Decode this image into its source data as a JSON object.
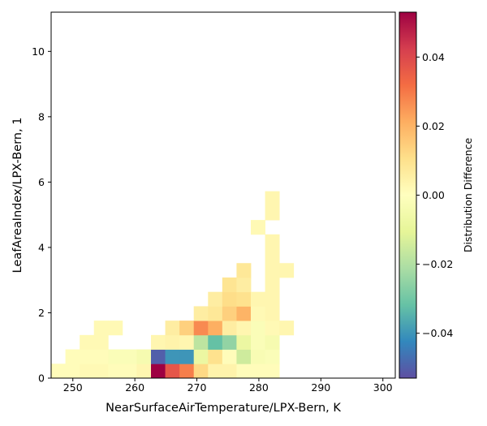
{
  "chart_data": {
    "type": "heatmap",
    "xlabel": "NearSurfaceAirTemperature/LPX-Bern,  K",
    "ylabel": "LeafAreaIndex/LPX-Bern,  1",
    "colorbar_label": "Distribution Difference",
    "xlim": [
      246.5,
      302
    ],
    "ylim": [
      0,
      11.2
    ],
    "x_ticks": [
      250,
      260,
      270,
      280,
      290,
      300
    ],
    "y_ticks": [
      0,
      2,
      4,
      6,
      8,
      10
    ],
    "colorbar_range": [
      -0.053,
      0.053
    ],
    "colorbar_ticks": [
      -0.04,
      -0.02,
      0.0,
      0.02,
      0.04
    ],
    "colorbar_tick_labels": [
      "−0.04",
      "−0.02",
      "0.00",
      "0.02",
      "0.04"
    ],
    "colormap": "Spectral_r",
    "bin_width_x": 2.3,
    "bin_height_y": 0.44,
    "cells": [
      {
        "x": 246.5,
        "y": 0.0,
        "v": 0.001
      },
      {
        "x": 248.8,
        "y": 0.0,
        "v": 0.001
      },
      {
        "x": 251.1,
        "y": 0.0,
        "v": 0.002
      },
      {
        "x": 253.4,
        "y": 0.0,
        "v": 0.002
      },
      {
        "x": 255.7,
        "y": 0.0,
        "v": 0.001
      },
      {
        "x": 258.0,
        "y": 0.0,
        "v": 0.001
      },
      {
        "x": 260.3,
        "y": 0.0,
        "v": 0.003
      },
      {
        "x": 262.6,
        "y": 0.0,
        "v": 0.053
      },
      {
        "x": 264.9,
        "y": 0.0,
        "v": 0.037
      },
      {
        "x": 267.2,
        "y": 0.0,
        "v": 0.029
      },
      {
        "x": 269.5,
        "y": 0.0,
        "v": 0.012
      },
      {
        "x": 271.8,
        "y": 0.0,
        "v": 0.004
      },
      {
        "x": 274.1,
        "y": 0.0,
        "v": 0.004
      },
      {
        "x": 276.4,
        "y": 0.0,
        "v": 0.001
      },
      {
        "x": 278.7,
        "y": 0.0,
        "v": 0.001
      },
      {
        "x": 281.0,
        "y": 0.0,
        "v": 0.001
      },
      {
        "x": 248.8,
        "y": 0.44,
        "v": 0.001
      },
      {
        "x": 251.1,
        "y": 0.44,
        "v": 0.001
      },
      {
        "x": 253.4,
        "y": 0.44,
        "v": 0.001
      },
      {
        "x": 255.7,
        "y": 0.44,
        "v": -0.002
      },
      {
        "x": 258.0,
        "y": 0.44,
        "v": -0.002
      },
      {
        "x": 260.3,
        "y": 0.44,
        "v": -0.004
      },
      {
        "x": 262.6,
        "y": 0.44,
        "v": -0.05
      },
      {
        "x": 264.9,
        "y": 0.44,
        "v": -0.04
      },
      {
        "x": 267.2,
        "y": 0.44,
        "v": -0.04
      },
      {
        "x": 269.5,
        "y": 0.44,
        "v": -0.008
      },
      {
        "x": 271.8,
        "y": 0.44,
        "v": 0.01
      },
      {
        "x": 274.1,
        "y": 0.44,
        "v": 0.001
      },
      {
        "x": 276.4,
        "y": 0.44,
        "v": -0.015
      },
      {
        "x": 278.7,
        "y": 0.44,
        "v": -0.003
      },
      {
        "x": 281.0,
        "y": 0.44,
        "v": -0.002
      },
      {
        "x": 251.1,
        "y": 0.88,
        "v": 0.002
      },
      {
        "x": 253.4,
        "y": 0.88,
        "v": 0.002
      },
      {
        "x": 262.6,
        "y": 0.88,
        "v": 0.003
      },
      {
        "x": 264.9,
        "y": 0.88,
        "v": 0.004
      },
      {
        "x": 267.2,
        "y": 0.88,
        "v": 0.003
      },
      {
        "x": 269.5,
        "y": 0.88,
        "v": -0.018
      },
      {
        "x": 271.8,
        "y": 0.88,
        "v": -0.032
      },
      {
        "x": 274.1,
        "y": 0.88,
        "v": -0.025
      },
      {
        "x": 276.4,
        "y": 0.88,
        "v": -0.008
      },
      {
        "x": 278.7,
        "y": 0.88,
        "v": -0.002
      },
      {
        "x": 281.0,
        "y": 0.88,
        "v": -0.004
      },
      {
        "x": 253.4,
        "y": 1.32,
        "v": 0.002
      },
      {
        "x": 255.7,
        "y": 1.32,
        "v": 0.002
      },
      {
        "x": 264.9,
        "y": 1.32,
        "v": 0.006
      },
      {
        "x": 267.2,
        "y": 1.32,
        "v": 0.014
      },
      {
        "x": 269.5,
        "y": 1.32,
        "v": 0.027
      },
      {
        "x": 271.8,
        "y": 1.32,
        "v": 0.021
      },
      {
        "x": 274.1,
        "y": 1.32,
        "v": 0.006
      },
      {
        "x": 276.4,
        "y": 1.32,
        "v": 0.003
      },
      {
        "x": 278.7,
        "y": 1.32,
        "v": -0.002
      },
      {
        "x": 281.0,
        "y": 1.32,
        "v": 0.002
      },
      {
        "x": 283.3,
        "y": 1.32,
        "v": 0.003
      },
      {
        "x": 269.5,
        "y": 1.76,
        "v": 0.006
      },
      {
        "x": 271.8,
        "y": 1.76,
        "v": 0.008
      },
      {
        "x": 274.1,
        "y": 1.76,
        "v": 0.014
      },
      {
        "x": 276.4,
        "y": 1.76,
        "v": 0.02
      },
      {
        "x": 278.7,
        "y": 1.76,
        "v": 0.002
      },
      {
        "x": 281.0,
        "y": 1.76,
        "v": 0.003
      },
      {
        "x": 271.8,
        "y": 2.2,
        "v": 0.006
      },
      {
        "x": 274.1,
        "y": 2.2,
        "v": 0.011
      },
      {
        "x": 276.4,
        "y": 2.2,
        "v": 0.01
      },
      {
        "x": 278.7,
        "y": 2.2,
        "v": 0.003
      },
      {
        "x": 281.0,
        "y": 2.2,
        "v": 0.003
      },
      {
        "x": 274.1,
        "y": 2.64,
        "v": 0.009
      },
      {
        "x": 276.4,
        "y": 2.64,
        "v": 0.006
      },
      {
        "x": 281.0,
        "y": 2.64,
        "v": 0.003
      },
      {
        "x": 276.4,
        "y": 3.08,
        "v": 0.008
      },
      {
        "x": 281.0,
        "y": 3.08,
        "v": 0.003
      },
      {
        "x": 283.3,
        "y": 3.08,
        "v": 0.003
      },
      {
        "x": 281.0,
        "y": 3.52,
        "v": 0.003
      },
      {
        "x": 281.0,
        "y": 3.96,
        "v": 0.003
      },
      {
        "x": 278.7,
        "y": 4.4,
        "v": 0.002
      },
      {
        "x": 281.0,
        "y": 4.84,
        "v": 0.003
      },
      {
        "x": 281.0,
        "y": 5.28,
        "v": 0.003
      }
    ]
  }
}
